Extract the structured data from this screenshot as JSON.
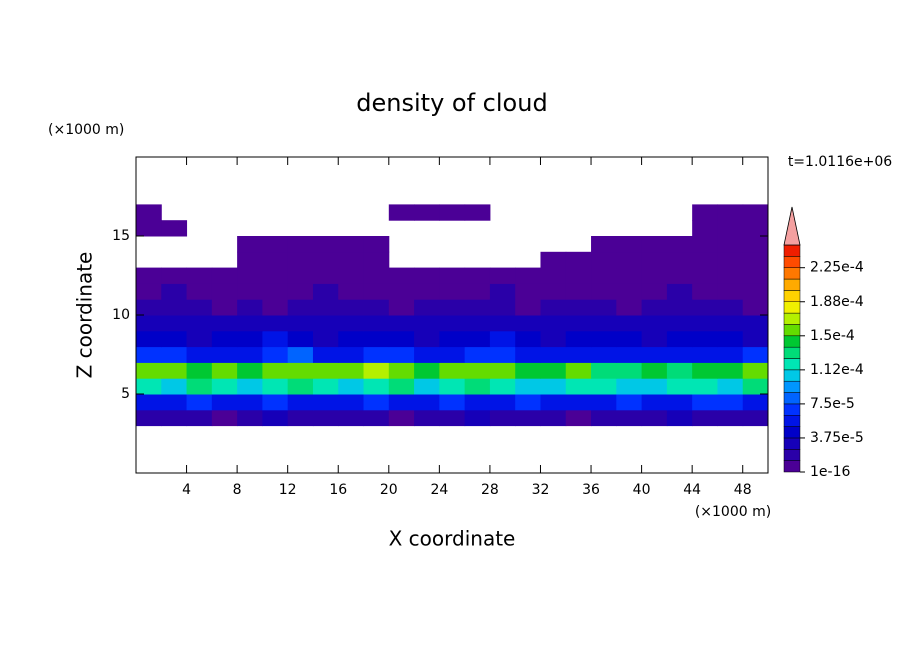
{
  "chart_data": {
    "type": "contour",
    "title": "density of cloud",
    "x_label": "X coordinate",
    "y_label": "Z coordinate",
    "x_unit": "(×1000 m)",
    "y_unit": "(×1000 m)",
    "time_label": "t=1.0116e+06",
    "xlim": [
      0,
      50
    ],
    "ylim": [
      0,
      20
    ],
    "xticks": [
      4,
      8,
      12,
      16,
      20,
      24,
      28,
      32,
      36,
      40,
      44,
      48
    ],
    "yticks": [
      5,
      10,
      15
    ],
    "x": [
      1,
      3,
      5,
      7,
      9,
      11,
      13,
      15,
      17,
      19,
      21,
      23,
      25,
      27,
      29,
      31,
      33,
      35,
      37,
      39,
      41,
      43,
      45,
      47,
      49
    ],
    "z": [
      3.5,
      4.5,
      5.5,
      6.5,
      7.5,
      8.5,
      9.5,
      10.5,
      11.5,
      12.5,
      13.5,
      14.5,
      15.5,
      16.5
    ],
    "values": [
      [
        2e-05,
        1.5e-05,
        2e-05,
        1e-05,
        2e-05,
        2.5e-05,
        1.5e-05,
        2e-05,
        1.5e-05,
        2e-05,
        1e-05,
        2e-05,
        1.5e-05,
        2.5e-05,
        2e-05,
        1.5e-05,
        2e-05,
        1e-05,
        2e-05,
        1.5e-05,
        2e-05,
        2.5e-05,
        1.5e-05,
        2e-05,
        1.5e-05
      ],
      [
        6e-05,
        5.5e-05,
        6.5e-05,
        6e-05,
        5e-05,
        7e-05,
        6e-05,
        5.5e-05,
        6e-05,
        6.5e-05,
        5e-05,
        6e-05,
        7e-05,
        5.5e-05,
        6e-05,
        6.5e-05,
        5e-05,
        6e-05,
        5.5e-05,
        7e-05,
        6e-05,
        5e-05,
        6.5e-05,
        7e-05,
        6e-05
      ],
      [
        0.00012,
        0.00011,
        0.000125,
        0.000115,
        0.000105,
        0.00012,
        0.00013,
        0.000115,
        0.00011,
        0.00012,
        0.000125,
        0.00011,
        0.00012,
        0.00013,
        0.000115,
        0.000105,
        0.00011,
        0.000115,
        0.00012,
        0.00011,
        0.000105,
        0.000115,
        0.00012,
        0.00011,
        0.000125
      ],
      [
        0.00016,
        0.000155,
        0.000145,
        0.00015,
        0.00014,
        0.000155,
        0.00016,
        0.00015,
        0.000155,
        0.000165,
        0.00015,
        0.000145,
        0.000155,
        0.00016,
        0.00015,
        0.00014,
        0.000145,
        0.00015,
        0.000135,
        0.00013,
        0.00014,
        0.000135,
        0.000145,
        0.00014,
        0.000155
      ],
      [
        6.5e-05,
        7e-05,
        5.5e-05,
        6e-05,
        5e-05,
        6.5e-05,
        7.5e-05,
        6e-05,
        5.5e-05,
        6.5e-05,
        7e-05,
        6e-05,
        5e-05,
        6.5e-05,
        7e-05,
        6e-05,
        5.5e-05,
        6e-05,
        5e-05,
        5.5e-05,
        6e-05,
        5e-05,
        5.5e-05,
        6e-05,
        6.5e-05
      ],
      [
        4e-05,
        4.5e-05,
        3.5e-05,
        4e-05,
        4.5e-05,
        5e-05,
        4e-05,
        3.5e-05,
        4e-05,
        4.5e-05,
        4e-05,
        3.5e-05,
        4e-05,
        4.5e-05,
        5e-05,
        4e-05,
        3.5e-05,
        4e-05,
        4.5e-05,
        4e-05,
        3.5e-05,
        4e-05,
        4.5e-05,
        4e-05,
        3.5e-05
      ],
      [
        3e-05,
        2.5e-05,
        3e-05,
        3.5e-05,
        3e-05,
        2.5e-05,
        3e-05,
        3.5e-05,
        2.5e-05,
        3e-05,
        3e-05,
        2.5e-05,
        3e-05,
        3.5e-05,
        3e-05,
        2.5e-05,
        3e-05,
        3e-05,
        3.5e-05,
        3e-05,
        2.5e-05,
        3e-05,
        3.5e-05,
        3e-05,
        2.5e-05
      ],
      [
        1.5e-05,
        2e-05,
        1.5e-05,
        1e-05,
        1.5e-05,
        5e-06,
        1.5e-05,
        2e-05,
        1.5e-05,
        1.5e-05,
        1e-05,
        1.5e-05,
        2e-05,
        1.5e-05,
        1.5e-05,
        1e-05,
        1.5e-05,
        2e-05,
        1.5e-05,
        1e-05,
        1.5e-05,
        2e-05,
        1.5e-05,
        1.5e-05,
        1e-05
      ],
      [
        1e-05,
        1.5e-05,
        1e-05,
        5e-06,
        1e-05,
        5e-06,
        1e-05,
        1.5e-05,
        1e-05,
        5e-06,
        1e-05,
        1e-05,
        5e-06,
        1e-05,
        1.5e-05,
        1e-05,
        5e-06,
        1e-05,
        1e-05,
        5e-06,
        1e-05,
        1.5e-05,
        1e-05,
        5e-06,
        1e-05
      ],
      [
        5e-06,
        5e-06,
        5e-06,
        5e-06,
        5e-06,
        5e-06,
        5e-06,
        5e-06,
        5e-06,
        5e-06,
        5e-06,
        5e-06,
        5e-06,
        5e-06,
        5e-06,
        5e-06,
        5e-06,
        5e-06,
        5e-06,
        5e-06,
        5e-06,
        5e-06,
        5e-06,
        5e-06,
        5e-06
      ],
      [
        0,
        0,
        0,
        0,
        5e-06,
        5e-06,
        5e-06,
        5e-06,
        5e-06,
        5e-06,
        0,
        0,
        0,
        0,
        0,
        0,
        5e-06,
        5e-06,
        5e-06,
        5e-06,
        5e-06,
        5e-06,
        5e-06,
        5e-06,
        5e-06
      ],
      [
        0,
        0,
        0,
        0,
        5e-06,
        5e-06,
        5e-06,
        5e-06,
        5e-06,
        5e-06,
        0,
        0,
        0,
        0,
        0,
        0,
        0,
        0,
        5e-06,
        5e-06,
        5e-06,
        5e-06,
        5e-06,
        5e-06,
        5e-06
      ],
      [
        5e-06,
        5e-06,
        0,
        0,
        0,
        0,
        0,
        0,
        0,
        0,
        0,
        0,
        0,
        0,
        0,
        0,
        0,
        0,
        0,
        0,
        0,
        0,
        5e-06,
        5e-06,
        5e-06
      ],
      [
        5e-06,
        0,
        0,
        0,
        0,
        0,
        0,
        0,
        0,
        0,
        5e-06,
        5e-06,
        5e-06,
        5e-06,
        0,
        0,
        0,
        0,
        0,
        0,
        0,
        0,
        5e-06,
        5e-06,
        5e-06
      ]
    ],
    "colorbar": {
      "levels": [
        1e-16,
        1.25e-05,
        2.5e-05,
        3.75e-05,
        5e-05,
        6.25e-05,
        7.5e-05,
        8.75e-05,
        0.0001,
        0.0001125,
        0.000125,
        0.0001375,
        0.00015,
        0.0001625,
        0.000175,
        0.0001875,
        0.0002,
        0.0002125,
        0.000225,
        0.0002375,
        0.00025
      ],
      "colors": [
        "#4b0096",
        "#2a00a8",
        "#1600b8",
        "#0000c8",
        "#0014e6",
        "#0032ff",
        "#0064ff",
        "#0096ff",
        "#00c8e6",
        "#00e6b4",
        "#00dc78",
        "#00c832",
        "#64dc00",
        "#b4f000",
        "#f0f000",
        "#ffd200",
        "#ffaa00",
        "#ff7800",
        "#ff4b00",
        "#f01e00"
      ],
      "over_color": "#f4a0a0",
      "ticks": [
        {
          "value": 1e-16,
          "label": "1e-16"
        },
        {
          "value": 3.75e-05,
          "label": "3.75e-5"
        },
        {
          "value": 7.5e-05,
          "label": "7.5e-5"
        },
        {
          "value": 0.0001125,
          "label": "1.12e-4"
        },
        {
          "value": 0.00015,
          "label": "1.5e-4"
        },
        {
          "value": 0.0001875,
          "label": "1.88e-4"
        },
        {
          "value": 0.000225,
          "label": "2.25e-4"
        }
      ]
    }
  }
}
